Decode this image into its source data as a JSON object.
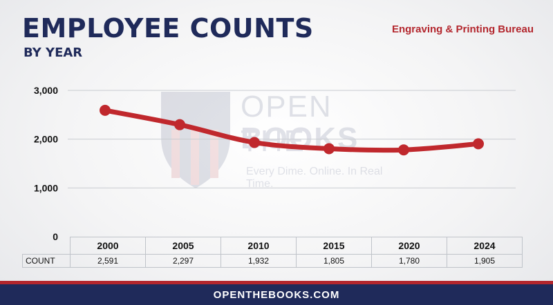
{
  "header": {
    "title": "EMPLOYEE COUNTS",
    "subtitle": "BY YEAR",
    "agency": "Engraving & Printing Bureau"
  },
  "watermark": {
    "line1": "OPEN THE",
    "line2": "BOOKS",
    "tagline": "Every Dime. Online. In Real Time."
  },
  "chart_data": {
    "type": "line",
    "title": "EMPLOYEE COUNTS",
    "subtitle": "BY YEAR",
    "categories": [
      "2000",
      "2005",
      "2010",
      "2015",
      "2020",
      "2024"
    ],
    "series": [
      {
        "name": "COUNT",
        "values": [
          2591,
          2297,
          1932,
          1805,
          1780,
          1905
        ],
        "color": "#c0282d"
      }
    ],
    "ylim": [
      0,
      3000
    ],
    "yticks": [
      0,
      1000,
      2000,
      3000
    ],
    "ytick_labels": [
      "0",
      "1,000",
      "2,000",
      "3,000"
    ],
    "grid": true
  },
  "table": {
    "row_label": "COUNT",
    "columns": [
      "2000",
      "2005",
      "2010",
      "2015",
      "2020",
      "2024"
    ],
    "values": [
      "2,591",
      "2,297",
      "1,932",
      "1,805",
      "1,780",
      "1,905"
    ]
  },
  "footer": {
    "text": "OPENTHEBOOKS.COM"
  },
  "colors": {
    "navy": "#1f2a5a",
    "red": "#b3262d",
    "line": "#c0282d"
  }
}
